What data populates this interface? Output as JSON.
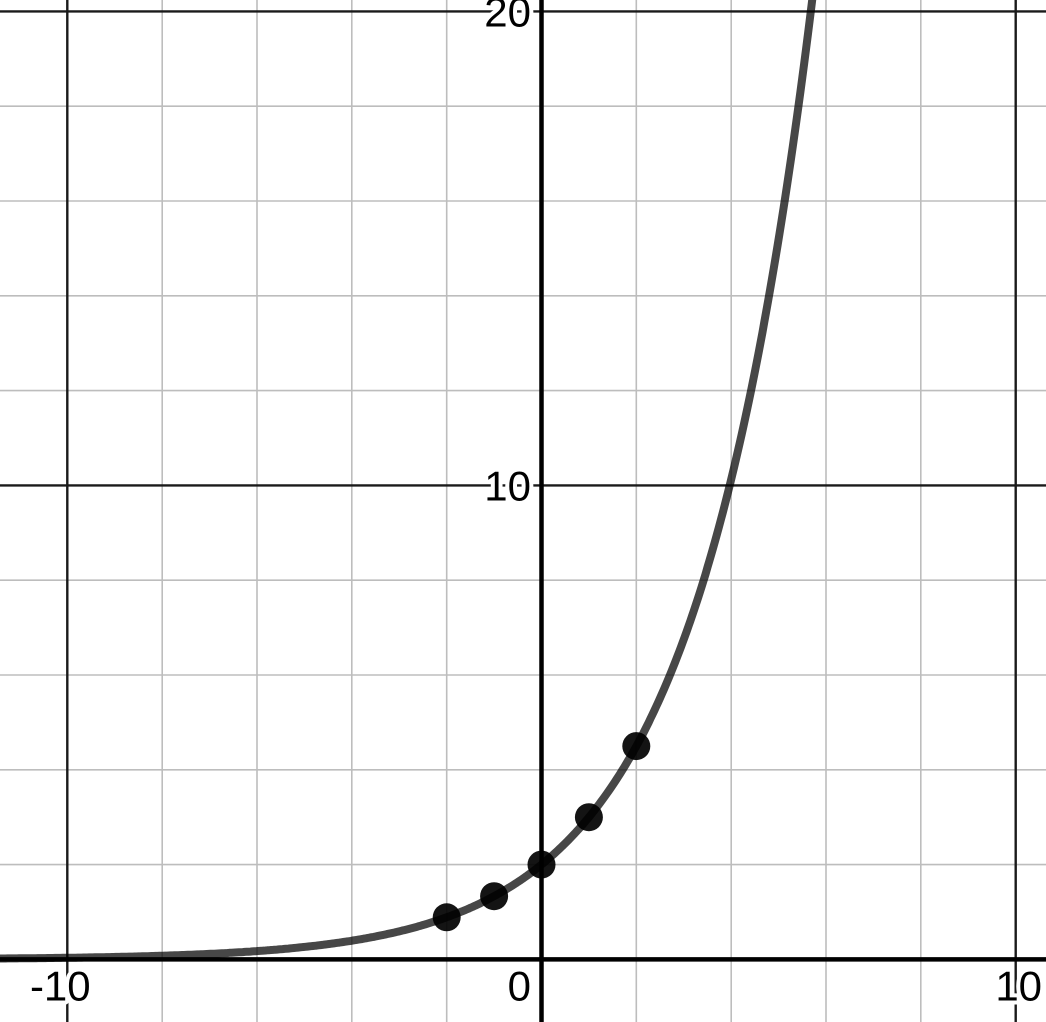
{
  "chart_data": {
    "type": "line",
    "description": "exponential growth curve with plotted points",
    "curve": {
      "expression": "y = 2(1.5)^x",
      "coefficient": 2,
      "base": 1.5,
      "color": "rgba(0,0,0,0.72)"
    },
    "points": [
      {
        "x": -2,
        "y": 0.889
      },
      {
        "x": -1,
        "y": 1.333
      },
      {
        "x": 0,
        "y": 2
      },
      {
        "x": 1,
        "y": 3
      },
      {
        "x": 2,
        "y": 4.5
      }
    ],
    "point_color": "rgba(0,0,0,0.92)",
    "axes": {
      "x": {
        "range": [
          -11.42,
          10.64
        ],
        "ticks": [
          {
            "value": -10,
            "label": "-10"
          },
          {
            "value": 0,
            "label": "0"
          },
          {
            "value": 10,
            "label": "10"
          }
        ]
      },
      "y": {
        "range": [
          -1.32,
          20.24
        ],
        "ticks": [
          {
            "value": 10,
            "label": "10"
          },
          {
            "value": 20,
            "label": "20"
          }
        ]
      }
    },
    "grid": {
      "show": true,
      "minor_step": 2,
      "major_step": 10,
      "minor_color": "#bdbdbd",
      "major_color": "#1a1a1a",
      "axis_color": "#000000"
    },
    "background": "#ffffff",
    "legend": null
  }
}
